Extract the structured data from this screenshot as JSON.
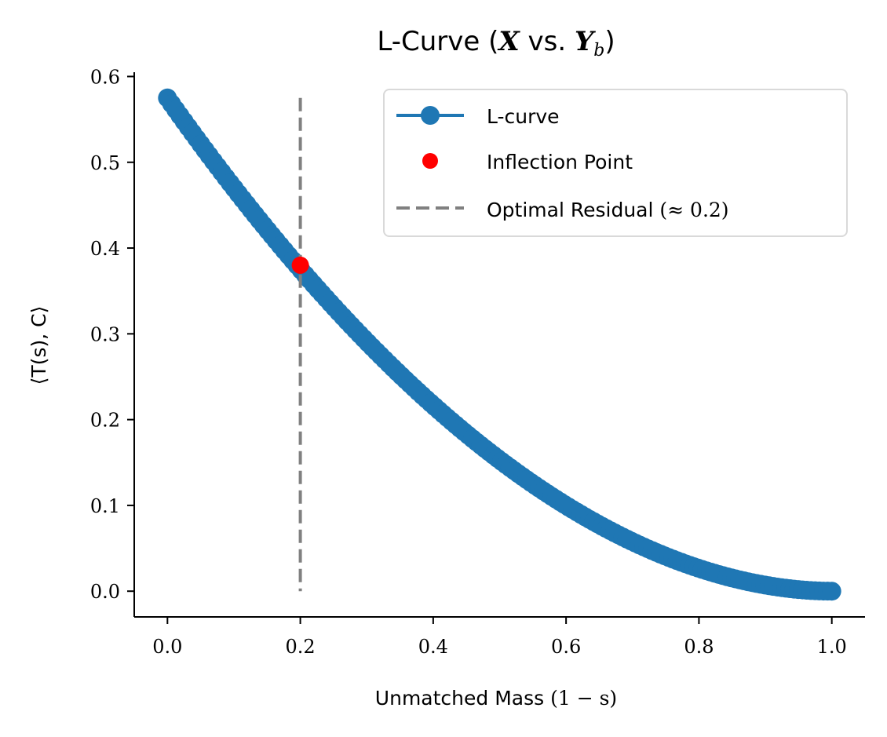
{
  "chart_data": {
    "type": "line",
    "title": {
      "text": "L-Curve (",
      "x_symbol": "X",
      "vs": " vs. ",
      "y_symbol": "Y",
      "y_subscript": "b",
      "close": ")"
    },
    "xlabel": {
      "text": "Unmatched Mass ",
      "math": "(1 − s)"
    },
    "ylabel": "⟨T(s), C⟩",
    "xlim": [
      -0.05,
      1.05
    ],
    "ylim": [
      -0.03,
      0.605
    ],
    "x_ticks": [
      0.0,
      0.2,
      0.4,
      0.6,
      0.8,
      1.0
    ],
    "x_tick_labels": [
      "0.0",
      "0.2",
      "0.4",
      "0.6",
      "0.8",
      "1.0"
    ],
    "y_ticks": [
      0.0,
      0.1,
      0.2,
      0.3,
      0.4,
      0.5,
      0.6
    ],
    "y_tick_labels": [
      "0.0",
      "0.1",
      "0.2",
      "0.3",
      "0.4",
      "0.5",
      "0.6"
    ],
    "grid": false,
    "series": [
      {
        "name": "L-curve",
        "color": "#1f77b4",
        "marker": "circle",
        "curve_model": "y = 0.575 * (1 - x)^1.91",
        "x_range": [
          0.0,
          1.0
        ],
        "num_points": 160
      }
    ],
    "inflection_point": {
      "name": "Inflection Point",
      "x": 0.2,
      "y": 0.38,
      "color": "#ff0000"
    },
    "optimal_residual": {
      "name": "Optimal Residual",
      "math": "(≈ 0.2)",
      "x": 0.2,
      "y_range": [
        0.0,
        0.575
      ],
      "color": "#808080",
      "style": "dashed"
    },
    "legend": {
      "location": "upper-right",
      "entries": [
        "L-curve",
        "Inflection Point",
        "Optimal Residual"
      ]
    }
  }
}
